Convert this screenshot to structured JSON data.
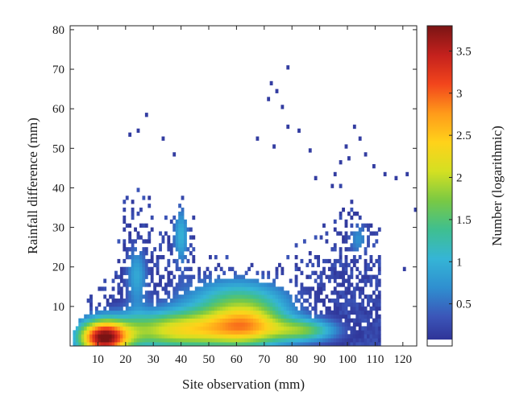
{
  "chart_data": {
    "type": "heatmap",
    "xlabel": "Site observation (mm)",
    "ylabel": "Rainfall difference (mm)",
    "colorbar_label": "Number (logarithmic)",
    "xlim": [
      0,
      125
    ],
    "ylim": [
      0,
      81
    ],
    "xticks": [
      10,
      20,
      30,
      40,
      50,
      60,
      70,
      80,
      90,
      100,
      110,
      120
    ],
    "yticks": [
      10,
      20,
      30,
      40,
      50,
      60,
      70,
      80
    ],
    "colorbar_range": [
      0,
      3.8
    ],
    "colorbar_ticks": [
      0.5,
      1,
      1.5,
      2,
      2.5,
      3,
      3.5
    ],
    "colormap": [
      "#2c2b8f",
      "#3b55b8",
      "#2f8fd0",
      "#35b5d6",
      "#3fbf8f",
      "#7ac943",
      "#d4e022",
      "#ffd21a",
      "#ff9a1a",
      "#f2451c",
      "#c4211d",
      "#7a1414"
    ],
    "bin_size": 1,
    "density_model": {
      "description": "log10 count per 1x1 mm bin, approximated",
      "main_peak": {
        "x": 12,
        "y": 2,
        "log_count": 3.4
      },
      "secondary_peak": {
        "x": 38,
        "y": 24,
        "log_count": 1.6
      },
      "outer_extent": {
        "x_max": 112,
        "y_max_at_40mm": 40
      }
    },
    "sparse_points": [
      [
        27,
        58
      ],
      [
        24,
        54
      ],
      [
        21,
        53
      ],
      [
        33,
        52
      ],
      [
        37,
        48
      ],
      [
        72,
        66
      ],
      [
        74,
        64
      ],
      [
        71,
        62
      ],
      [
        76,
        60
      ],
      [
        78,
        70
      ],
      [
        67,
        52
      ],
      [
        73,
        50
      ],
      [
        78,
        55
      ],
      [
        82,
        54
      ],
      [
        86,
        49
      ],
      [
        99,
        50
      ],
      [
        102,
        55
      ],
      [
        104,
        52
      ],
      [
        109,
        45
      ],
      [
        113,
        43
      ],
      [
        117,
        42
      ],
      [
        120,
        19
      ],
      [
        121,
        43
      ],
      [
        124,
        34
      ],
      [
        97,
        46
      ],
      [
        95,
        43
      ],
      [
        100,
        47
      ],
      [
        106,
        48
      ],
      [
        94,
        40
      ],
      [
        88,
        42
      ]
    ]
  }
}
